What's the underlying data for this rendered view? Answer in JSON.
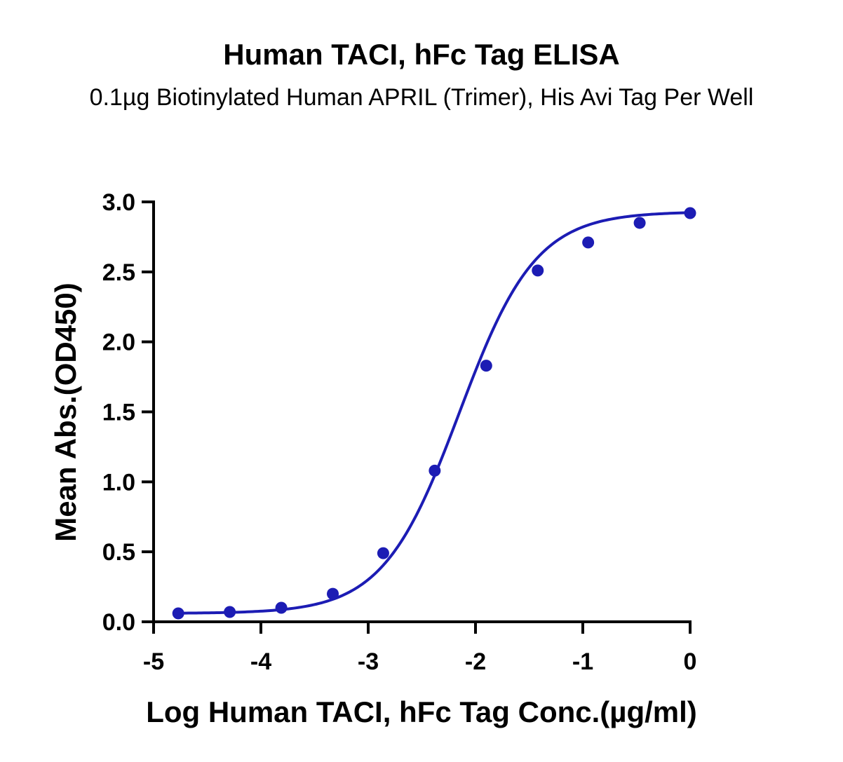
{
  "chart_data": {
    "type": "scatter",
    "title": "Human TACI, hFc Tag ELISA",
    "subtitle": "0.1µg Biotinylated Human APRIL (Trimer), His Avi Tag Per Well",
    "xlabel": "Log Human TACI, hFc Tag Conc.(µg/ml)",
    "ylabel": "Mean Abs.(OD450)",
    "xlim": [
      -5,
      0
    ],
    "ylim": [
      0,
      3.0
    ],
    "x_ticks": [
      -5,
      -4,
      -3,
      -2,
      -1,
      0
    ],
    "x_tick_labels": [
      "-5",
      "-4",
      "-3",
      "-2",
      "-1",
      "0"
    ],
    "y_ticks": [
      0,
      0.5,
      1.0,
      1.5,
      2.0,
      2.5,
      3.0
    ],
    "y_tick_labels": [
      "0.0",
      "0.5",
      "1.0",
      "1.5",
      "2.0",
      "2.5",
      "3.0"
    ],
    "grid": false,
    "legend": "none",
    "color": "#1c1cb4",
    "series": [
      {
        "x": [
          -4.77,
          -4.29,
          -3.81,
          -3.33,
          -2.86,
          -2.38,
          -1.9,
          -1.42,
          -0.95,
          -0.47,
          0.0
        ],
        "y": [
          0.06,
          0.07,
          0.1,
          0.2,
          0.49,
          1.08,
          1.83,
          2.51,
          2.71,
          2.85,
          2.92
        ]
      }
    ],
    "fit": {
      "model": "4PL",
      "bottom": 0.06,
      "top": 2.93,
      "logEC50": -2.15,
      "hill": 1.22
    }
  }
}
